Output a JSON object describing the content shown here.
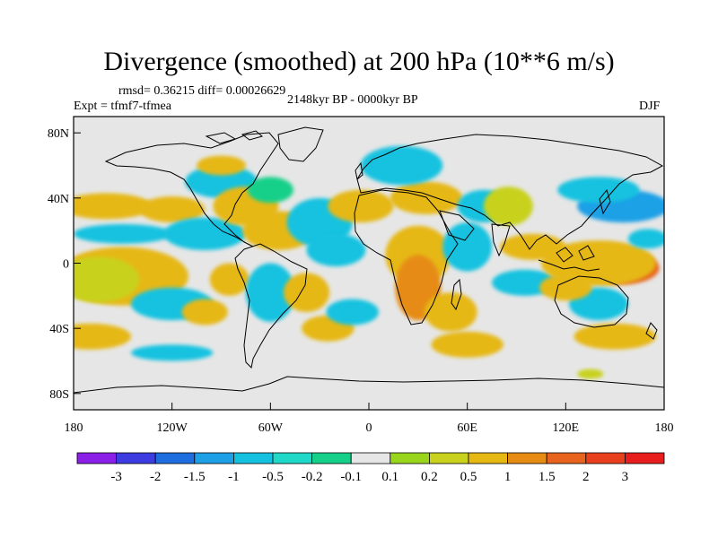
{
  "title": "Divergence (smoothed) at 200 hPa (10**6 m/s)",
  "stats": "rmsd= 0.36215 diff= 0.00026629",
  "experiment": "Expt = tfmf7-tfmea",
  "period": "2148kyr BP - 0000kyr BP",
  "season": "DJF",
  "colors": {
    "ocean_bg": "#e6e6e6",
    "coast": "#000000"
  },
  "axes": {
    "lat_ticks": [
      {
        "value": 80,
        "label": "80N"
      },
      {
        "value": 40,
        "label": "40N"
      },
      {
        "value": 0,
        "label": "0"
      },
      {
        "value": -40,
        "label": "40S"
      },
      {
        "value": -80,
        "label": "80S"
      }
    ],
    "lon_ticks": [
      {
        "value": -180,
        "label": "180"
      },
      {
        "value": -120,
        "label": "120W"
      },
      {
        "value": -60,
        "label": "60W"
      },
      {
        "value": 0,
        "label": "0"
      },
      {
        "value": 60,
        "label": "60E"
      },
      {
        "value": 120,
        "label": "120E"
      },
      {
        "value": 180,
        "label": "180"
      }
    ],
    "lon_range": [
      -180,
      180
    ],
    "lat_range": [
      -90,
      90
    ]
  },
  "colorbar": {
    "colors": [
      "#8a1fe8",
      "#3c3ce0",
      "#1e6ee0",
      "#1ea0e6",
      "#14c2e0",
      "#20d8c8",
      "#16d08a",
      "#e6e6e6",
      "#9ad51e",
      "#c8d21e",
      "#e6b814",
      "#e68c14",
      "#e8641e",
      "#e8401e",
      "#e81e1e"
    ],
    "labels": [
      "-3",
      "-2",
      "-1.5",
      "-1",
      "-0.5",
      "-0.2",
      "-0.1",
      "0.1",
      "0.2",
      "0.5",
      "1",
      "1.5",
      "2",
      "3"
    ]
  },
  "regions": [
    {
      "lon": -140,
      "lat": -10,
      "rx": 22,
      "ry": 12,
      "level": 13
    },
    {
      "lon": -150,
      "lat": -8,
      "rx": 40,
      "ry": 18,
      "level": 10
    },
    {
      "lon": -165,
      "lat": -10,
      "rx": 25,
      "ry": 14,
      "level": 9
    },
    {
      "lon": -160,
      "lat": 35,
      "rx": 28,
      "ry": 8,
      "level": 10
    },
    {
      "lon": -120,
      "lat": 33,
      "rx": 20,
      "ry": 8,
      "level": 10
    },
    {
      "lon": -150,
      "lat": 18,
      "rx": 30,
      "ry": 6,
      "level": 4
    },
    {
      "lon": -100,
      "lat": 18,
      "rx": 25,
      "ry": 10,
      "level": 4
    },
    {
      "lon": -90,
      "lat": 50,
      "rx": 22,
      "ry": 10,
      "level": 4
    },
    {
      "lon": -75,
      "lat": 35,
      "rx": 20,
      "ry": 12,
      "level": 10
    },
    {
      "lon": -60,
      "lat": 45,
      "rx": 14,
      "ry": 8,
      "level": 6
    },
    {
      "lon": -55,
      "lat": 20,
      "rx": 22,
      "ry": 12,
      "level": 10
    },
    {
      "lon": -30,
      "lat": 25,
      "rx": 20,
      "ry": 15,
      "level": 4
    },
    {
      "lon": -5,
      "lat": 35,
      "rx": 20,
      "ry": 10,
      "level": 10
    },
    {
      "lon": -170,
      "lat": -45,
      "rx": 25,
      "ry": 8,
      "level": 10
    },
    {
      "lon": -120,
      "lat": -25,
      "rx": 25,
      "ry": 10,
      "level": 4
    },
    {
      "lon": -100,
      "lat": -30,
      "rx": 14,
      "ry": 8,
      "level": 10
    },
    {
      "lon": -85,
      "lat": -10,
      "rx": 12,
      "ry": 10,
      "level": 10
    },
    {
      "lon": -60,
      "lat": -18,
      "rx": 15,
      "ry": 18,
      "level": 4
    },
    {
      "lon": -38,
      "lat": -18,
      "rx": 14,
      "ry": 12,
      "level": 10
    },
    {
      "lon": -25,
      "lat": -40,
      "rx": 16,
      "ry": 8,
      "level": 10
    },
    {
      "lon": -10,
      "lat": -30,
      "rx": 16,
      "ry": 8,
      "level": 4
    },
    {
      "lon": -120,
      "lat": -55,
      "rx": 25,
      "ry": 5,
      "level": 4
    },
    {
      "lon": -20,
      "lat": 8,
      "rx": 18,
      "ry": 10,
      "level": 4
    },
    {
      "lon": 30,
      "lat": 5,
      "rx": 20,
      "ry": 18,
      "level": 10
    },
    {
      "lon": 30,
      "lat": -15,
      "rx": 14,
      "ry": 20,
      "level": 11
    },
    {
      "lon": 50,
      "lat": -30,
      "rx": 16,
      "ry": 12,
      "level": 10
    },
    {
      "lon": 60,
      "lat": 10,
      "rx": 15,
      "ry": 15,
      "level": 4
    },
    {
      "lon": 60,
      "lat": -50,
      "rx": 22,
      "ry": 8,
      "level": 10
    },
    {
      "lon": 35,
      "lat": 40,
      "rx": 22,
      "ry": 10,
      "level": 10
    },
    {
      "lon": 70,
      "lat": 35,
      "rx": 16,
      "ry": 10,
      "level": 4
    },
    {
      "lon": 85,
      "lat": 35,
      "rx": 15,
      "ry": 12,
      "level": 9
    },
    {
      "lon": 20,
      "lat": 60,
      "rx": 25,
      "ry": 12,
      "level": 4
    },
    {
      "lon": 100,
      "lat": 10,
      "rx": 20,
      "ry": 8,
      "level": 10
    },
    {
      "lon": 95,
      "lat": -12,
      "rx": 20,
      "ry": 8,
      "level": 4
    },
    {
      "lon": 155,
      "lat": -3,
      "rx": 22,
      "ry": 10,
      "level": 12
    },
    {
      "lon": 140,
      "lat": 0,
      "rx": 35,
      "ry": 14,
      "level": 10
    },
    {
      "lon": 140,
      "lat": -25,
      "rx": 18,
      "ry": 10,
      "level": 4
    },
    {
      "lon": 120,
      "lat": -15,
      "rx": 16,
      "ry": 8,
      "level": 10
    },
    {
      "lon": 150,
      "lat": -45,
      "rx": 25,
      "ry": 8,
      "level": 10
    },
    {
      "lon": 155,
      "lat": 35,
      "rx": 28,
      "ry": 10,
      "level": 3
    },
    {
      "lon": 140,
      "lat": 45,
      "rx": 25,
      "ry": 8,
      "level": 4
    },
    {
      "lon": 170,
      "lat": 15,
      "rx": 12,
      "ry": 6,
      "level": 4
    },
    {
      "lon": -90,
      "lat": 60,
      "rx": 15,
      "ry": 6,
      "level": 10
    },
    {
      "lon": 135,
      "lat": -68,
      "rx": 8,
      "ry": 3,
      "level": 9
    }
  ]
}
